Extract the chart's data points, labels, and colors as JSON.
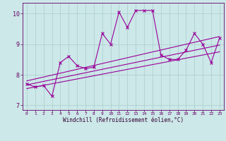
{
  "xlabel": "Windchill (Refroidissement éolien,°C)",
  "x_values": [
    0,
    1,
    2,
    3,
    4,
    5,
    6,
    7,
    8,
    9,
    10,
    11,
    12,
    13,
    14,
    15,
    16,
    17,
    18,
    19,
    20,
    21,
    22,
    23
  ],
  "y_main": [
    7.7,
    7.6,
    7.65,
    7.3,
    8.4,
    8.6,
    8.3,
    8.2,
    8.25,
    9.35,
    9.0,
    10.05,
    9.55,
    10.1,
    10.1,
    10.1,
    8.65,
    8.5,
    8.5,
    8.8,
    9.35,
    9.0,
    8.4,
    9.2
  ],
  "reg_lower": [
    7.55,
    8.75
  ],
  "reg_mid": [
    7.67,
    8.97
  ],
  "reg_upper": [
    7.8,
    9.25
  ],
  "ylim": [
    6.85,
    10.35
  ],
  "xlim": [
    -0.5,
    23.5
  ],
  "yticks": [
    7,
    8,
    9,
    10
  ],
  "xticks": [
    0,
    1,
    2,
    3,
    4,
    5,
    6,
    7,
    8,
    9,
    10,
    11,
    12,
    13,
    14,
    15,
    16,
    17,
    18,
    19,
    20,
    21,
    22,
    23
  ],
  "line_color": "#990099",
  "bg_color": "#cce8e8",
  "grid_color": "#aacccc",
  "label_color": "#660066",
  "xlabel_color": "#330033"
}
